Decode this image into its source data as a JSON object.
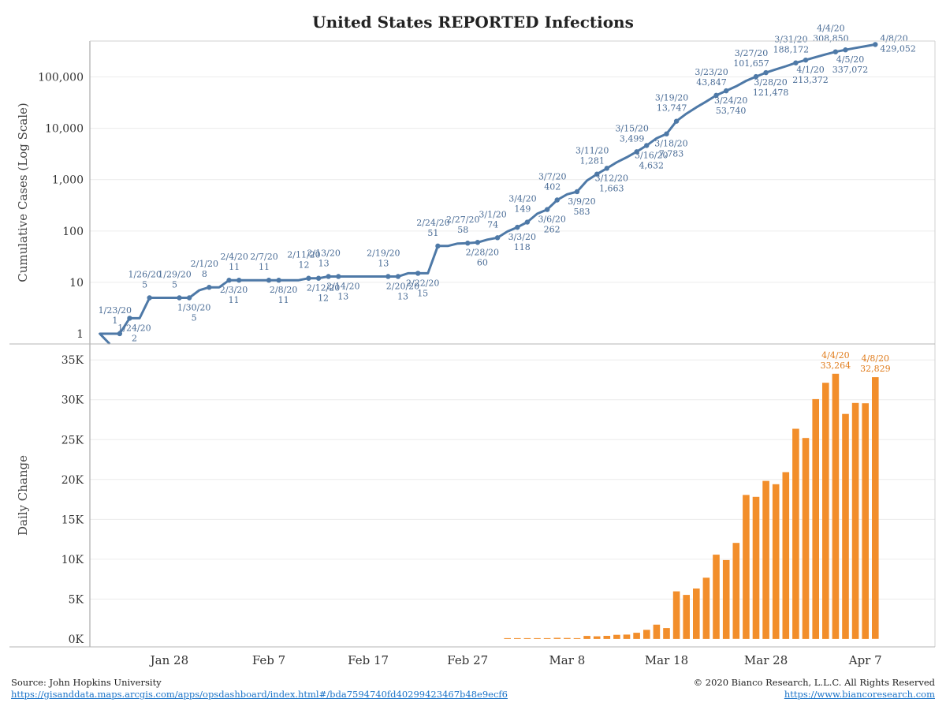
{
  "title": "United States REPORTED Infections",
  "footer": {
    "source": "Source: John Hopkins University",
    "source_url": "https://gisanddata.maps.arcgis.com/apps/opsdashboard/index.html#/bda7594740fd40299423467b48e9ecf6",
    "copyright": "© 2020 Bianco Research, L.L.C. All Rights Reserved",
    "site_url": "https://www.biancoresearch.com"
  },
  "colors": {
    "line": "#4e79a7",
    "bar": "#f28e2b",
    "grid": "#ececec",
    "axis": "#9a9a9a"
  },
  "chart_data": [
    {
      "type": "line",
      "scale": "log",
      "ylabel": "Cumulative Cases (Log Scale)",
      "ytick_labels": [
        "1",
        "10",
        "100",
        "1,000",
        "10,000",
        "100,000"
      ],
      "xtick_labels": [
        "Jan 28",
        "Feb 7",
        "Feb 17",
        "Feb 27",
        "Mar 8",
        "Mar 18",
        "Mar 28",
        "Apr 7"
      ],
      "xlim": [
        "2020-01-20",
        "2020-04-14"
      ],
      "series": [
        {
          "points": [
            {
              "x": "2020-01-21",
              "y": 1
            },
            {
              "x": "2020-01-22",
              "y": 1
            },
            {
              "x": "2020-01-23",
              "y": 1
            },
            {
              "x": "2020-01-24",
              "y": 2
            },
            {
              "x": "2020-01-25",
              "y": 2
            },
            {
              "x": "2020-01-26",
              "y": 5
            },
            {
              "x": "2020-01-27",
              "y": 5
            },
            {
              "x": "2020-01-28",
              "y": 5
            },
            {
              "x": "2020-01-29",
              "y": 5
            },
            {
              "x": "2020-01-30",
              "y": 5
            },
            {
              "x": "2020-01-31",
              "y": 7
            },
            {
              "x": "2020-02-01",
              "y": 8
            },
            {
              "x": "2020-02-02",
              "y": 8
            },
            {
              "x": "2020-02-03",
              "y": 11
            },
            {
              "x": "2020-02-04",
              "y": 11
            },
            {
              "x": "2020-02-05",
              "y": 11
            },
            {
              "x": "2020-02-06",
              "y": 11
            },
            {
              "x": "2020-02-07",
              "y": 11
            },
            {
              "x": "2020-02-08",
              "y": 11
            },
            {
              "x": "2020-02-09",
              "y": 11
            },
            {
              "x": "2020-02-10",
              "y": 11
            },
            {
              "x": "2020-02-11",
              "y": 12
            },
            {
              "x": "2020-02-12",
              "y": 12
            },
            {
              "x": "2020-02-13",
              "y": 13
            },
            {
              "x": "2020-02-14",
              "y": 13
            },
            {
              "x": "2020-02-15",
              "y": 13
            },
            {
              "x": "2020-02-16",
              "y": 13
            },
            {
              "x": "2020-02-17",
              "y": 13
            },
            {
              "x": "2020-02-18",
              "y": 13
            },
            {
              "x": "2020-02-19",
              "y": 13
            },
            {
              "x": "2020-02-20",
              "y": 13
            },
            {
              "x": "2020-02-21",
              "y": 15
            },
            {
              "x": "2020-02-22",
              "y": 15
            },
            {
              "x": "2020-02-23",
              "y": 15
            },
            {
              "x": "2020-02-24",
              "y": 51
            },
            {
              "x": "2020-02-25",
              "y": 51
            },
            {
              "x": "2020-02-26",
              "y": 57
            },
            {
              "x": "2020-02-27",
              "y": 58
            },
            {
              "x": "2020-02-28",
              "y": 60
            },
            {
              "x": "2020-02-29",
              "y": 68
            },
            {
              "x": "2020-03-01",
              "y": 74
            },
            {
              "x": "2020-03-02",
              "y": 98
            },
            {
              "x": "2020-03-03",
              "y": 118
            },
            {
              "x": "2020-03-04",
              "y": 149
            },
            {
              "x": "2020-03-05",
              "y": 217
            },
            {
              "x": "2020-03-06",
              "y": 262
            },
            {
              "x": "2020-03-07",
              "y": 402
            },
            {
              "x": "2020-03-08",
              "y": 518
            },
            {
              "x": "2020-03-09",
              "y": 583
            },
            {
              "x": "2020-03-10",
              "y": 959
            },
            {
              "x": "2020-03-11",
              "y": 1281
            },
            {
              "x": "2020-03-12",
              "y": 1663
            },
            {
              "x": "2020-03-13",
              "y": 2179
            },
            {
              "x": "2020-03-14",
              "y": 2727
            },
            {
              "x": "2020-03-15",
              "y": 3499
            },
            {
              "x": "2020-03-16",
              "y": 4632
            },
            {
              "x": "2020-03-17",
              "y": 6421
            },
            {
              "x": "2020-03-18",
              "y": 7783
            },
            {
              "x": "2020-03-19",
              "y": 13747
            },
            {
              "x": "2020-03-20",
              "y": 19273
            },
            {
              "x": "2020-03-21",
              "y": 25600
            },
            {
              "x": "2020-03-22",
              "y": 33276
            },
            {
              "x": "2020-03-23",
              "y": 43847
            },
            {
              "x": "2020-03-24",
              "y": 53740
            },
            {
              "x": "2020-03-25",
              "y": 65778
            },
            {
              "x": "2020-03-26",
              "y": 83836
            },
            {
              "x": "2020-03-27",
              "y": 101657
            },
            {
              "x": "2020-03-28",
              "y": 121478
            },
            {
              "x": "2020-03-29",
              "y": 140886
            },
            {
              "x": "2020-03-30",
              "y": 161807
            },
            {
              "x": "2020-03-31",
              "y": 188172
            },
            {
              "x": "2020-04-01",
              "y": 213372
            },
            {
              "x": "2020-04-02",
              "y": 243453
            },
            {
              "x": "2020-04-03",
              "y": 275586
            },
            {
              "x": "2020-04-04",
              "y": 308850
            },
            {
              "x": "2020-04-05",
              "y": 337072
            },
            {
              "x": "2020-04-06",
              "y": 366667
            },
            {
              "x": "2020-04-07",
              "y": 396223
            },
            {
              "x": "2020-04-08",
              "y": 429052
            }
          ]
        }
      ],
      "annotations": [
        {
          "date": "1/23/20",
          "value": "1",
          "x": "2020-01-23",
          "y": 1,
          "pos": "above"
        },
        {
          "date": "1/24/20",
          "value": "2",
          "x": "2020-01-24",
          "y": 2,
          "pos": "below"
        },
        {
          "date": "1/26/20",
          "value": "5",
          "x": "2020-01-26",
          "y": 5,
          "pos": "above"
        },
        {
          "date": "1/29/20",
          "value": "5",
          "x": "2020-01-29",
          "y": 5,
          "pos": "above"
        },
        {
          "date": "1/30/20",
          "value": "5",
          "x": "2020-01-30",
          "y": 5,
          "pos": "below"
        },
        {
          "date": "2/1/20",
          "value": "8",
          "x": "2020-02-01",
          "y": 8,
          "pos": "above"
        },
        {
          "date": "2/3/20",
          "value": "11",
          "x": "2020-02-03",
          "y": 11,
          "pos": "below"
        },
        {
          "date": "2/4/20",
          "value": "11",
          "x": "2020-02-04",
          "y": 11,
          "pos": "above"
        },
        {
          "date": "2/7/20",
          "value": "11",
          "x": "2020-02-07",
          "y": 11,
          "pos": "above"
        },
        {
          "date": "2/8/20",
          "value": "11",
          "x": "2020-02-08",
          "y": 11,
          "pos": "below"
        },
        {
          "date": "2/11/20",
          "value": "12",
          "x": "2020-02-11",
          "y": 12,
          "pos": "above"
        },
        {
          "date": "2/12/20",
          "value": "12",
          "x": "2020-02-12",
          "y": 12,
          "pos": "below"
        },
        {
          "date": "2/13/20",
          "value": "13",
          "x": "2020-02-13",
          "y": 13,
          "pos": "above"
        },
        {
          "date": "2/14/20",
          "value": "13",
          "x": "2020-02-14",
          "y": 13,
          "pos": "below"
        },
        {
          "date": "2/19/20",
          "value": "13",
          "x": "2020-02-19",
          "y": 13,
          "pos": "above"
        },
        {
          "date": "2/20/20",
          "value": "13",
          "x": "2020-02-20",
          "y": 13,
          "pos": "below"
        },
        {
          "date": "2/22/20",
          "value": "15",
          "x": "2020-02-22",
          "y": 15,
          "pos": "below"
        },
        {
          "date": "2/24/20",
          "value": "51",
          "x": "2020-02-24",
          "y": 51,
          "pos": "above"
        },
        {
          "date": "2/27/20",
          "value": "58",
          "x": "2020-02-27",
          "y": 58,
          "pos": "above"
        },
        {
          "date": "2/28/20",
          "value": "60",
          "x": "2020-02-28",
          "y": 60,
          "pos": "below"
        },
        {
          "date": "3/1/20",
          "value": "74",
          "x": "2020-03-01",
          "y": 74,
          "pos": "above"
        },
        {
          "date": "3/3/20",
          "value": "118",
          "x": "2020-03-03",
          "y": 118,
          "pos": "below"
        },
        {
          "date": "3/4/20",
          "value": "149",
          "x": "2020-03-04",
          "y": 149,
          "pos": "above"
        },
        {
          "date": "3/6/20",
          "value": "262",
          "x": "2020-03-06",
          "y": 262,
          "pos": "below"
        },
        {
          "date": "3/7/20",
          "value": "402",
          "x": "2020-03-07",
          "y": 402,
          "pos": "above"
        },
        {
          "date": "3/9/20",
          "value": "583",
          "x": "2020-03-09",
          "y": 583,
          "pos": "below"
        },
        {
          "date": "3/11/20",
          "value": "1,281",
          "x": "2020-03-11",
          "y": 1281,
          "pos": "above"
        },
        {
          "date": "3/12/20",
          "value": "1,663",
          "x": "2020-03-12",
          "y": 1663,
          "pos": "below"
        },
        {
          "date": "3/15/20",
          "value": "3,499",
          "x": "2020-03-15",
          "y": 3499,
          "pos": "above"
        },
        {
          "date": "3/16/20",
          "value": "4,632",
          "x": "2020-03-16",
          "y": 4632,
          "pos": "below"
        },
        {
          "date": "3/18/20",
          "value": "7,783",
          "x": "2020-03-18",
          "y": 7783,
          "pos": "below"
        },
        {
          "date": "3/19/20",
          "value": "13,747",
          "x": "2020-03-19",
          "y": 13747,
          "pos": "above"
        },
        {
          "date": "3/23/20",
          "value": "43,847",
          "x": "2020-03-23",
          "y": 43847,
          "pos": "above"
        },
        {
          "date": "3/24/20",
          "value": "53,740",
          "x": "2020-03-24",
          "y": 53740,
          "pos": "below"
        },
        {
          "date": "3/27/20",
          "value": "101,657",
          "x": "2020-03-27",
          "y": 101657,
          "pos": "above"
        },
        {
          "date": "3/28/20",
          "value": "121,478",
          "x": "2020-03-28",
          "y": 121478,
          "pos": "below"
        },
        {
          "date": "3/31/20",
          "value": "188,172",
          "x": "2020-03-31",
          "y": 188172,
          "pos": "above"
        },
        {
          "date": "4/1/20",
          "value": "213,372",
          "x": "2020-04-01",
          "y": 213372,
          "pos": "below"
        },
        {
          "date": "4/4/20",
          "value": "308,850",
          "x": "2020-04-04",
          "y": 308850,
          "pos": "above"
        },
        {
          "date": "4/5/20",
          "value": "337,072",
          "x": "2020-04-05",
          "y": 337072,
          "pos": "below"
        },
        {
          "date": "4/8/20",
          "value": "429,052",
          "x": "2020-04-08",
          "y": 429052,
          "pos": "right"
        }
      ]
    },
    {
      "type": "bar",
      "ylabel": "Daily Change",
      "ylim": [
        -1000,
        37000
      ],
      "ytick_labels": [
        "0K",
        "5K",
        "10K",
        "15K",
        "20K",
        "25K",
        "30K",
        "35K"
      ],
      "xtick_labels": [
        "Jan 28",
        "Feb 7",
        "Feb 17",
        "Feb 27",
        "Mar 8",
        "Mar 18",
        "Mar 28",
        "Apr 7"
      ],
      "xlim": [
        "2020-01-20",
        "2020-04-14"
      ],
      "bars": [
        {
          "x": "2020-03-02",
          "y": 24
        },
        {
          "x": "2020-03-03",
          "y": 20
        },
        {
          "x": "2020-03-04",
          "y": 31
        },
        {
          "x": "2020-03-05",
          "y": 68
        },
        {
          "x": "2020-03-06",
          "y": 45
        },
        {
          "x": "2020-03-07",
          "y": 140
        },
        {
          "x": "2020-03-08",
          "y": 116
        },
        {
          "x": "2020-03-09",
          "y": 65
        },
        {
          "x": "2020-03-10",
          "y": 376
        },
        {
          "x": "2020-03-11",
          "y": 322
        },
        {
          "x": "2020-03-12",
          "y": 382
        },
        {
          "x": "2020-03-13",
          "y": 516
        },
        {
          "x": "2020-03-14",
          "y": 548
        },
        {
          "x": "2020-03-15",
          "y": 772
        },
        {
          "x": "2020-03-16",
          "y": 1133
        },
        {
          "x": "2020-03-17",
          "y": 1789
        },
        {
          "x": "2020-03-18",
          "y": 1362
        },
        {
          "x": "2020-03-19",
          "y": 5964
        },
        {
          "x": "2020-03-20",
          "y": 5526
        },
        {
          "x": "2020-03-21",
          "y": 6327
        },
        {
          "x": "2020-03-22",
          "y": 7676
        },
        {
          "x": "2020-03-23",
          "y": 10571
        },
        {
          "x": "2020-03-24",
          "y": 9893
        },
        {
          "x": "2020-03-25",
          "y": 12038
        },
        {
          "x": "2020-03-26",
          "y": 18058
        },
        {
          "x": "2020-03-27",
          "y": 17821
        },
        {
          "x": "2020-03-28",
          "y": 19821
        },
        {
          "x": "2020-03-29",
          "y": 19408
        },
        {
          "x": "2020-03-30",
          "y": 20921
        },
        {
          "x": "2020-03-31",
          "y": 26365
        },
        {
          "x": "2020-04-01",
          "y": 25200
        },
        {
          "x": "2020-04-02",
          "y": 30081
        },
        {
          "x": "2020-04-03",
          "y": 32133
        },
        {
          "x": "2020-04-04",
          "y": 33264
        },
        {
          "x": "2020-04-05",
          "y": 28222
        },
        {
          "x": "2020-04-06",
          "y": 29595
        },
        {
          "x": "2020-04-07",
          "y": 29556
        },
        {
          "x": "2020-04-08",
          "y": 32829
        }
      ],
      "annotations": [
        {
          "date": "4/4/20",
          "value": "33,264",
          "x": "2020-04-04",
          "y": 33264
        },
        {
          "date": "4/8/20",
          "value": "32,829",
          "x": "2020-04-08",
          "y": 32829
        }
      ]
    }
  ]
}
